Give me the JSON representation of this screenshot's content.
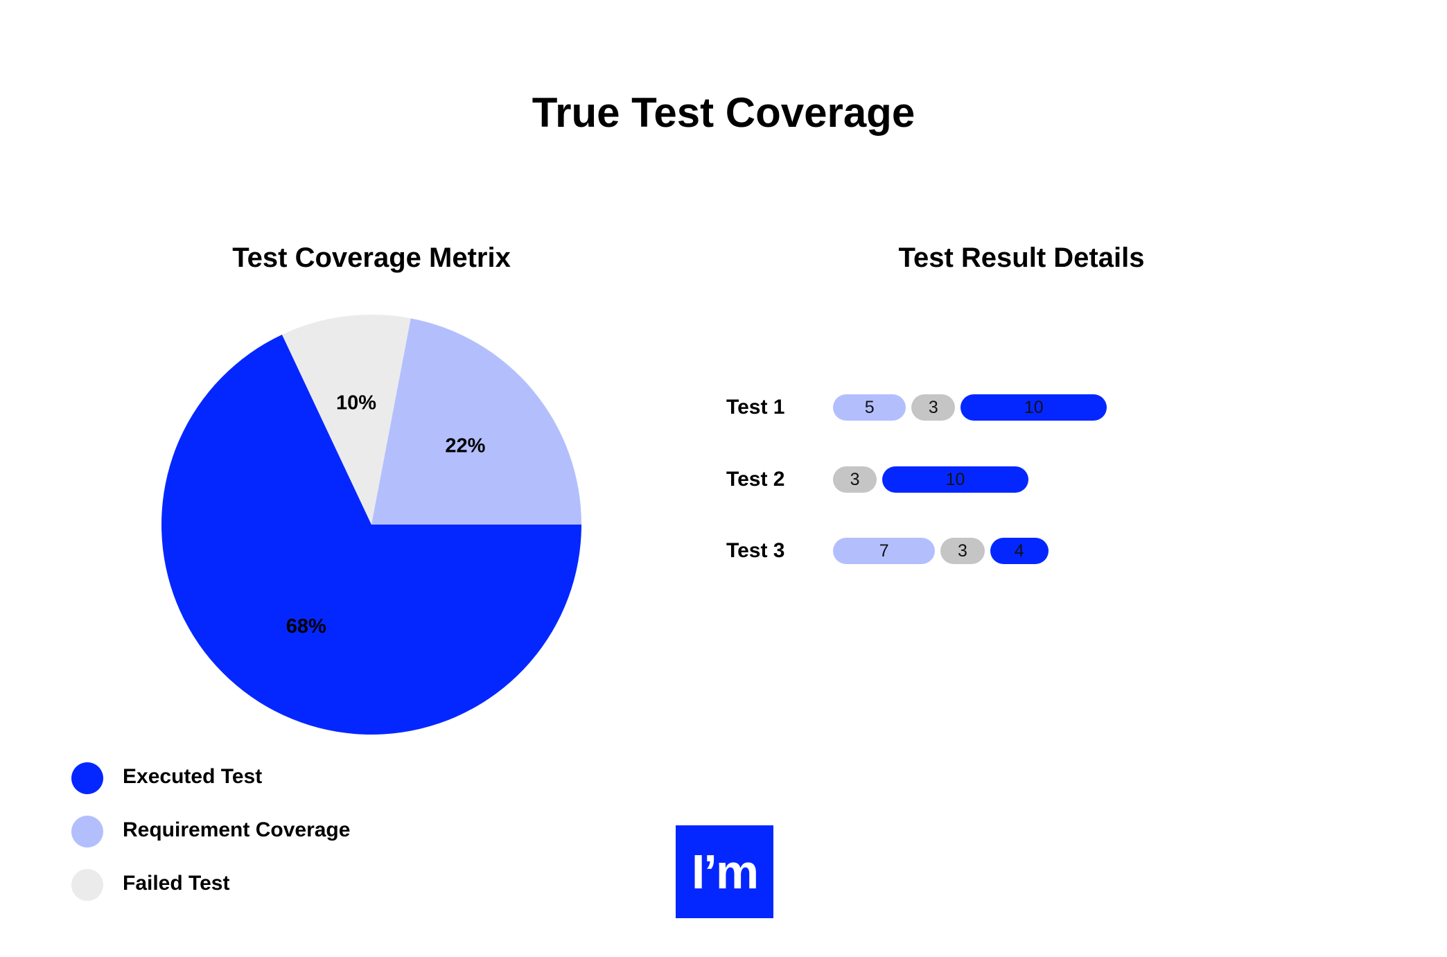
{
  "title": "True Test Coverage",
  "colors": {
    "executed": "#0527ff",
    "requirement": "#b3bffd",
    "failed": "#ebebeb",
    "neutral": "#c5c5c5"
  },
  "logo_text": "I’m",
  "chart_data": [
    {
      "type": "pie",
      "title": "Test Coverage Metrix",
      "labels": [
        "Executed Test",
        "Requirement Coverage",
        "Failed Test"
      ],
      "values": [
        68,
        22,
        10
      ],
      "value_labels": [
        "68%",
        "22%",
        "10%"
      ],
      "colors": [
        "#0527ff",
        "#b3bffd",
        "#ebebeb"
      ],
      "legend_position": "bottom-left"
    },
    {
      "type": "bar",
      "orientation": "horizontal",
      "stacked": true,
      "title": "Test Result Details",
      "categories": [
        "Test 1",
        "Test 2",
        "Test 3"
      ],
      "rows": [
        {
          "label": "Test 1",
          "segments": [
            {
              "value": 5,
              "color": "#b3bffd"
            },
            {
              "value": 3,
              "color": "#c5c5c5"
            },
            {
              "value": 10,
              "color": "#0527ff"
            }
          ]
        },
        {
          "label": "Test 2",
          "segments": [
            {
              "value": 3,
              "color": "#c5c5c5"
            },
            {
              "value": 10,
              "color": "#0527ff"
            }
          ]
        },
        {
          "label": "Test 3",
          "segments": [
            {
              "value": 7,
              "color": "#b3bffd"
            },
            {
              "value": 3,
              "color": "#c5c5c5"
            },
            {
              "value": 4,
              "color": "#0527ff"
            }
          ]
        }
      ]
    }
  ]
}
